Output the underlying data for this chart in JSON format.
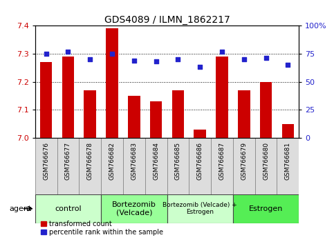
{
  "title": "GDS4089 / ILMN_1862217",
  "samples": [
    "GSM766676",
    "GSM766677",
    "GSM766678",
    "GSM766682",
    "GSM766683",
    "GSM766684",
    "GSM766685",
    "GSM766686",
    "GSM766687",
    "GSM766679",
    "GSM766680",
    "GSM766681"
  ],
  "red_values": [
    7.27,
    7.29,
    7.17,
    7.39,
    7.15,
    7.13,
    7.17,
    7.03,
    7.29,
    7.17,
    7.2,
    7.05
  ],
  "blue_values": [
    75,
    77,
    70,
    75,
    69,
    68,
    70,
    63,
    77,
    70,
    71,
    65
  ],
  "ylim_left": [
    7.0,
    7.4
  ],
  "ylim_right": [
    0,
    100
  ],
  "yticks_left": [
    7.0,
    7.1,
    7.2,
    7.3,
    7.4
  ],
  "yticks_right": [
    0,
    25,
    50,
    75,
    100
  ],
  "ytick_labels_right": [
    "0",
    "25",
    "50",
    "75",
    "100%"
  ],
  "bar_color": "#cc0000",
  "dot_color": "#2222cc",
  "background_color": "#ffffff",
  "groups": [
    {
      "label": "control",
      "start": 0,
      "end": 3,
      "color": "#ccffcc"
    },
    {
      "label": "Bortezomib\n(Velcade)",
      "start": 3,
      "end": 6,
      "color": "#99ff99"
    },
    {
      "label": "Bortezomib (Velcade) +\nEstrogen",
      "start": 6,
      "end": 9,
      "color": "#ccffcc"
    },
    {
      "label": "Estrogen",
      "start": 9,
      "end": 12,
      "color": "#55ee55"
    }
  ],
  "agent_label": "agent",
  "legend_red": "transformed count",
  "legend_blue": "percentile rank within the sample",
  "bar_width": 0.55,
  "tick_label_fontsize": 6.5,
  "title_fontsize": 10,
  "group_fontsize": 8,
  "group_fontsize_small": 6.5
}
